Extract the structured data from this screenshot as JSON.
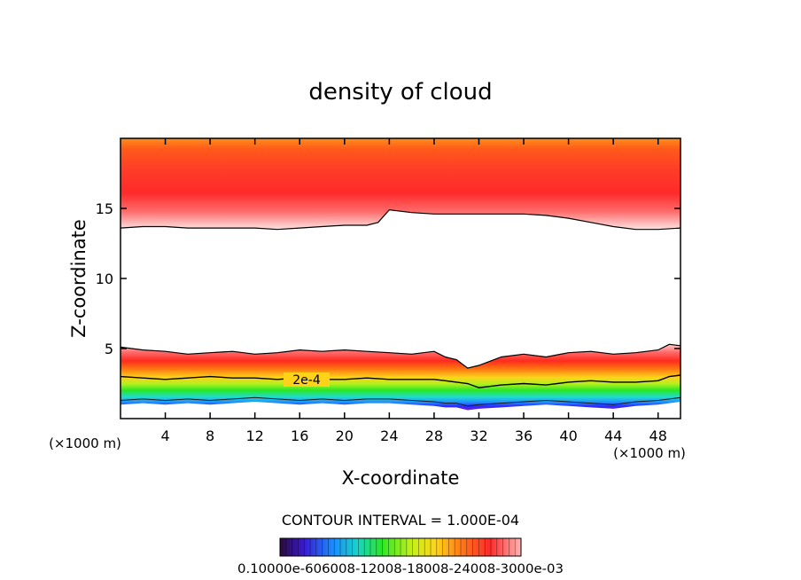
{
  "chart_data": {
    "type": "heatmap",
    "title": "density of cloud",
    "xlabel": "X-coordinate",
    "ylabel": "Z-coordinate",
    "x_unit": "(×1000 m)",
    "xlim": [
      0,
      50
    ],
    "ylim": [
      0,
      20
    ],
    "x_ticks": [
      4,
      8,
      12,
      16,
      20,
      24,
      28,
      32,
      36,
      40,
      44,
      48
    ],
    "y_ticks": [
      5,
      10,
      15
    ],
    "footer": "CONTOUR INTERVAL = 1.000E-04",
    "contour_label": "2e-4",
    "colorbar_tick_labels": [
      "0.1000e-05",
      "0.6000e-04",
      "0.1200e-03",
      "0.1800e-03",
      "0.2400e-03",
      "0.3000e-03"
    ],
    "colorbar_label_text": "0.10000e-606008-12008-18008-24008-3000e-03",
    "upper_cloud": {
      "x": [
        0,
        2,
        4,
        6,
        8,
        10,
        12,
        14,
        16,
        18,
        20,
        22,
        23,
        24,
        26,
        28,
        30,
        32,
        34,
        36,
        38,
        40,
        42,
        44,
        46,
        48,
        50
      ],
      "z_base": [
        13.6,
        13.7,
        13.7,
        13.6,
        13.6,
        13.6,
        13.6,
        13.5,
        13.6,
        13.7,
        13.8,
        13.8,
        14.0,
        14.9,
        14.7,
        14.6,
        14.6,
        14.6,
        14.6,
        14.6,
        14.5,
        14.3,
        14.0,
        13.7,
        13.5,
        13.5,
        13.6
      ],
      "z_top": 20
    },
    "lower_cloud": {
      "x": [
        0,
        2,
        4,
        6,
        8,
        10,
        12,
        14,
        16,
        18,
        20,
        22,
        24,
        26,
        28,
        29,
        30,
        31,
        32,
        34,
        36,
        38,
        40,
        42,
        44,
        46,
        48,
        49,
        50
      ],
      "z_top": [
        5.1,
        4.9,
        4.8,
        4.6,
        4.7,
        4.8,
        4.6,
        4.7,
        4.9,
        4.8,
        4.9,
        4.8,
        4.7,
        4.6,
        4.8,
        4.4,
        4.2,
        3.6,
        3.8,
        4.4,
        4.6,
        4.4,
        4.7,
        4.8,
        4.6,
        4.7,
        4.9,
        5.3,
        5.2
      ],
      "contour_2e4": [
        3.0,
        2.9,
        2.8,
        2.9,
        3.0,
        2.9,
        2.9,
        2.8,
        2.9,
        2.8,
        2.8,
        2.9,
        2.8,
        2.8,
        2.8,
        2.7,
        2.6,
        2.5,
        2.2,
        2.4,
        2.5,
        2.4,
        2.6,
        2.7,
        2.6,
        2.6,
        2.7,
        3.0,
        3.1
      ],
      "z_base": [
        1.0,
        1.1,
        1.0,
        1.1,
        1.0,
        1.1,
        1.2,
        1.1,
        1.0,
        1.1,
        1.0,
        1.1,
        1.1,
        1.0,
        0.9,
        0.8,
        0.8,
        0.6,
        0.7,
        0.8,
        0.9,
        1.0,
        0.9,
        0.8,
        0.7,
        0.9,
        1.0,
        1.1,
        1.2
      ]
    }
  }
}
